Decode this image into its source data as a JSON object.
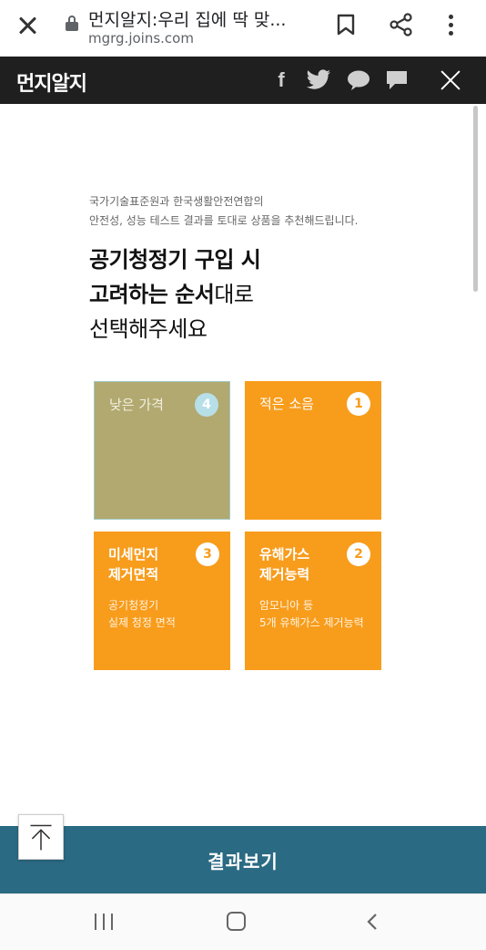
{
  "browser": {
    "page_title": "먼지알지:우리 집에 딱 맞...",
    "url": "mgrg.joins.com"
  },
  "site": {
    "logo": "먼지알지",
    "share_icons": [
      "facebook-icon",
      "twitter-icon",
      "kakaotalk-icon",
      "message-icon"
    ]
  },
  "intro": {
    "line1": "국가기술표준원과 한국생활안전연합의",
    "line2": "안전성, 성능 테스트 결과를 토대로 상품을 추천해드립니다."
  },
  "headline": {
    "line1": "공기청정기 구입 시",
    "line2_strong": "고려하는 순서",
    "line2_light": "대로",
    "line3": "선택해주세요"
  },
  "cards": [
    {
      "label": "낮은 가격",
      "rank": "4",
      "desc": ""
    },
    {
      "label": "적은 소음",
      "rank": "1",
      "desc": ""
    },
    {
      "label": "미세먼지 제거면적",
      "rank": "3",
      "desc": "공기청정기 실제 청정 면적"
    },
    {
      "label": "유해가스 제거능력",
      "rank": "2",
      "desc": "암모니아 등 5개 유해가스 제거능력"
    }
  ],
  "cards_display": {
    "dust_label_1": "미세먼지",
    "dust_label_2": "제거면적",
    "dust_desc_1": "공기청정기",
    "dust_desc_2": "실제 청정 면적",
    "gas_label_1": "유해가스",
    "gas_label_2": "제거능력",
    "gas_desc_1": "암모니아 등",
    "gas_desc_2": "5개 유해가스 제거능력"
  },
  "result_button": "결과보기",
  "colors": {
    "accent_orange": "#f89c1c",
    "selected_card": "#b1a970",
    "result_bar": "#2b6a83",
    "header_bg": "#1f1f1f"
  }
}
